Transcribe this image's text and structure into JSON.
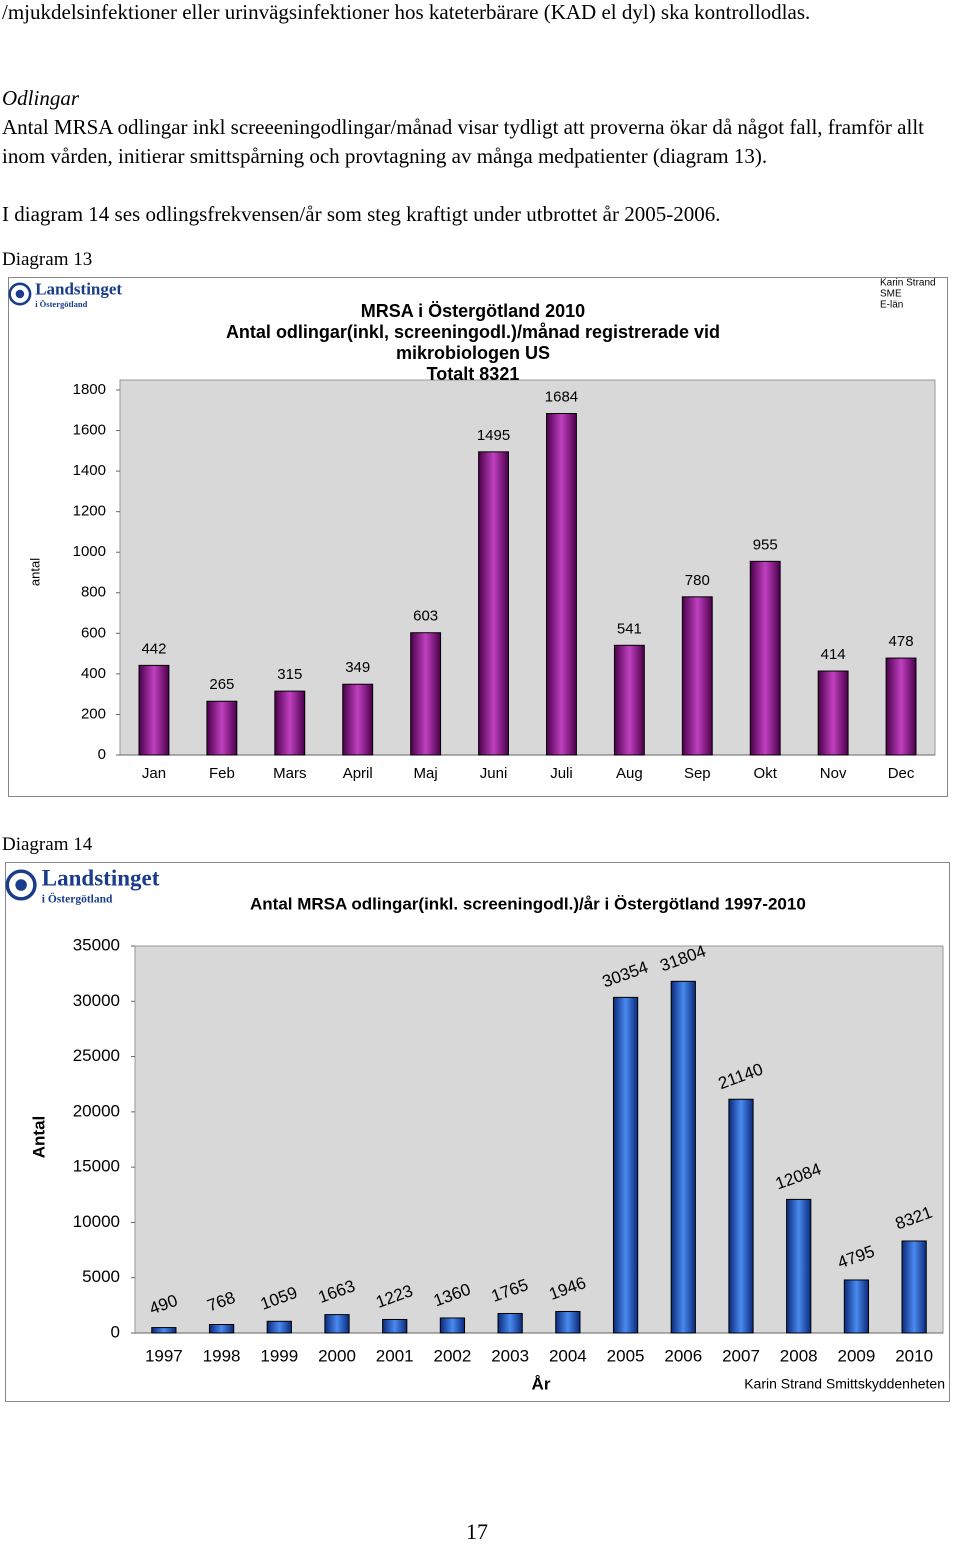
{
  "paragraphs": [
    "/mjukdelsinfektioner eller urinvägsinfektioner hos kateterbärare (KAD el dyl) ska kontrollodlas.",
    "Odlingar",
    "Antal MRSA odlingar inkl screeeningodlingar/månad visar tydligt att proverna ökar då något fall, framför allt inom vården, initierar smittspårning och provtagning av många medpatienter (diagram 13).",
    "I diagram 14 ses odlingsfrekvensen/år som steg kraftigt under utbrottet år 2005-2006."
  ],
  "captions": [
    "Diagram 13",
    "Diagram 14"
  ],
  "chart_data": [
    {
      "type": "bar",
      "title": [
        "MRSA i Östergötland 2010",
        "Antal odlingar(inkl, screeningodl.)/månad registrerade vid",
        "mikrobiologen US",
        "Totalt 8321"
      ],
      "logo_text": [
        "Landstinget",
        "i Östergötland"
      ],
      "note": [
        "Karin Strand",
        "SME",
        "E-län"
      ],
      "y_label": "antal",
      "categories": [
        "Jan",
        "Feb",
        "Mars",
        "April",
        "Maj",
        "Juni",
        "Juli",
        "Aug",
        "Sep",
        "Okt",
        "Nov",
        "Dec"
      ],
      "values": [
        442,
        265,
        315,
        349,
        603,
        1495,
        1684,
        541,
        780,
        955,
        414,
        478
      ],
      "color": "#800080",
      "ylim": [
        0,
        1800
      ],
      "yticks": [
        0,
        200,
        400,
        600,
        800,
        1000,
        1200,
        1400,
        1600,
        1800
      ],
      "grid": false
    },
    {
      "type": "bar",
      "title": [
        "Antal MRSA odlingar(inkl. screeningodl.)/år i Östergötland 1997-2010"
      ],
      "logo_text": [
        "Landstinget",
        "i Östergötland"
      ],
      "note": [
        "Karin Strand Smittskyddenheten"
      ],
      "y_label": "Antal",
      "x_label": "År",
      "categories": [
        "1997",
        "1998",
        "1999",
        "2000",
        "2001",
        "2002",
        "2003",
        "2004",
        "2005",
        "2006",
        "2007",
        "2008",
        "2009",
        "2010"
      ],
      "values": [
        490,
        768,
        1059,
        1663,
        1223,
        1360,
        1765,
        1946,
        30354,
        31804,
        21140,
        12084,
        4795,
        8321
      ],
      "color": "#1f4fb4",
      "ylim": [
        0,
        35000
      ],
      "yticks": [
        0,
        5000,
        10000,
        15000,
        20000,
        25000,
        30000,
        35000
      ],
      "grid": false
    }
  ],
  "page_number": "17"
}
